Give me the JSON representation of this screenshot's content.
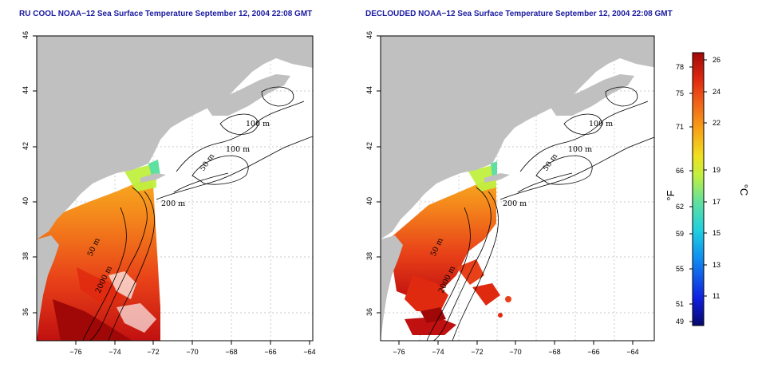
{
  "panels": [
    {
      "title": "RU COOL NOAA−12 Sea Surface Temperature September 12, 2004 22:08 GMT",
      "contour_labels": [
        "100 m",
        "100 m",
        "50 m",
        "200 m",
        "50 m",
        "2000 m"
      ]
    },
    {
      "title": "DECLOUDED NOAA−12 Sea Surface Temperature September 12, 2004 22:08 GMT",
      "contour_labels": [
        "100 m",
        "100 m",
        "50 m",
        "200 m",
        "50 m",
        "2000 m"
      ]
    }
  ],
  "axes": {
    "x_ticks": [
      "−76",
      "−74",
      "−72",
      "−70",
      "−68",
      "−66",
      "−64"
    ],
    "y_ticks": [
      "46",
      "44",
      "42",
      "40",
      "38",
      "36"
    ],
    "xlim": [
      -77.0,
      -62.8
    ],
    "ylim": [
      35.0,
      46.0
    ]
  },
  "colorbar": {
    "fahrenheit_ticks": [
      "78",
      "75",
      "71",
      "66",
      "62",
      "59",
      "55",
      "51",
      "49"
    ],
    "celsius_ticks": [
      "26",
      "24",
      "22",
      "19",
      "17",
      "15",
      "13",
      "11"
    ],
    "fahrenheit_unit": "°F",
    "celsius_unit": "°C",
    "colors": [
      "#08086e",
      "#1020e0",
      "#1090f0",
      "#20d0e0",
      "#60e0a0",
      "#c0f040",
      "#f0e020",
      "#f8a018",
      "#f06018",
      "#e02a10",
      "#a00808"
    ]
  },
  "colors": {
    "land": "#c0c0c0",
    "ocean": "#ffffff",
    "title": "#1a1aa0",
    "grid": "#b8b8b8"
  }
}
